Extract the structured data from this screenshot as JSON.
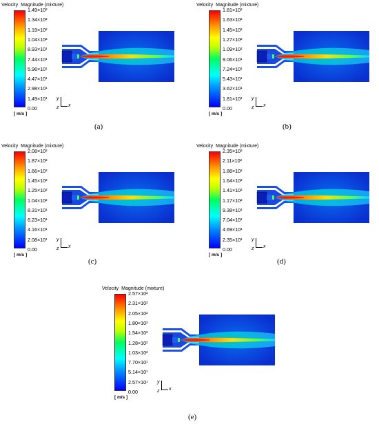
{
  "colorbar_title": [
    "Velocity",
    "Magnitude (mixture)"
  ],
  "units": "[ m/s ]",
  "axes": {
    "y": "y",
    "z": "z",
    "x": "x"
  },
  "colors": {
    "low": "#0000ff",
    "mid": "#00ff60",
    "high": "#ff0000",
    "background": "#0a3cd8"
  },
  "panels": [
    {
      "caption": "(a)",
      "ticks": [
        "1.49×10²",
        "1.34×10²",
        "1.19×10²",
        "1.04×10²",
        "8.93×10¹",
        "7.44×10¹",
        "5.96×10¹",
        "4.47×10¹",
        "2.98×10¹",
        "1.49×10¹",
        "0.00"
      ]
    },
    {
      "caption": "(b)",
      "ticks": [
        "1.81×10²",
        "1.63×10²",
        "1.45×10²",
        "1.27×10²",
        "1.09×10²",
        "9.06×10¹",
        "7.24×10¹",
        "5.43×10¹",
        "3.62×10¹",
        "1.81×10¹",
        "0.00"
      ]
    },
    {
      "caption": "(c)",
      "ticks": [
        "2.08×10²",
        "1.87×10²",
        "1.66×10²",
        "1.45×10²",
        "1.25×10²",
        "1.04×10²",
        "8.31×10¹",
        "6.23×10¹",
        "4.16×10¹",
        "2.08×10¹",
        "0.00"
      ]
    },
    {
      "caption": "(d)",
      "ticks": [
        "2.35×10²",
        "2.11×10²",
        "1.88×10²",
        "1.64×10²",
        "1.41×10²",
        "1.17×10²",
        "9.38×10¹",
        "7.04×10¹",
        "4.69×10¹",
        "2.35×10¹",
        "0.00"
      ]
    },
    {
      "caption": "(e)",
      "ticks": [
        "2.57×10²",
        "2.31×10²",
        "2.05×10²",
        "1.80×10²",
        "1.54×10²",
        "1.28×10²",
        "1.03×10²",
        "7.70×10¹",
        "5.14×10¹",
        "2.57×10¹",
        "0.00"
      ]
    }
  ]
}
